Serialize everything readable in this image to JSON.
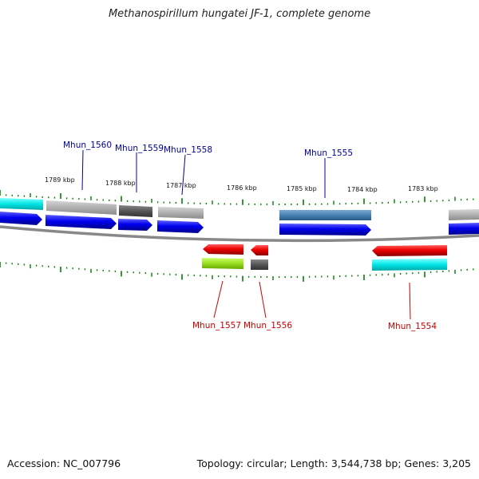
{
  "title": "Methanospirillum hungatei JF-1, complete genome",
  "footer": {
    "accession": "Accession: NC_007796",
    "info": "Topology: circular; Length: 3,544,738 bp; Genes: 3,205"
  },
  "ruler_labels": [
    "1789 kbp",
    "1788 kbp",
    "1787 kbp",
    "1786 kbp",
    "1785 kbp",
    "1784 kbp",
    "1783 kbp"
  ],
  "genes_top": [
    {
      "label": "Mhun_1560",
      "color": "#000099"
    },
    {
      "label": "Mhun_1559",
      "color": "#000099"
    },
    {
      "label": "Mhun_1558",
      "color": "#000099"
    },
    {
      "label": "Mhun_1555",
      "color": "#000099"
    }
  ],
  "genes_bottom": [
    {
      "label": "Mhun_1557",
      "color": "#cc0000"
    },
    {
      "label": "Mhun_1556",
      "color": "#cc0000"
    },
    {
      "label": "Mhun_1554",
      "color": "#cc0000"
    }
  ],
  "colors": {
    "forward_cds": "#0000ee",
    "reverse_cds": "#ee0000",
    "backbone": "#808080",
    "ticks": "#008000",
    "cyan_feature": "#00e5e5",
    "grey_feature": "#b0b0b0",
    "dark_grey_feature": "#555555",
    "steelblue_feature": "#4682b4",
    "lime_feature": "#99dd22"
  }
}
